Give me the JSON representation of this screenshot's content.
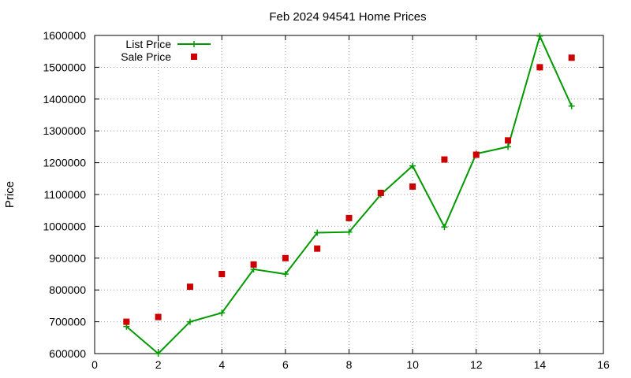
{
  "chart_data": {
    "type": "line",
    "title": "Feb 2024 94541 Home Prices",
    "xlabel": "",
    "ylabel": "Price",
    "xlim": [
      0,
      16
    ],
    "ylim": [
      600000,
      1600000
    ],
    "xticks": [
      0,
      2,
      4,
      6,
      8,
      10,
      12,
      14,
      16
    ],
    "yticks": [
      600000,
      700000,
      800000,
      900000,
      1000000,
      1100000,
      1200000,
      1300000,
      1400000,
      1500000,
      1600000
    ],
    "grid": true,
    "legend_position": "top-left",
    "series": [
      {
        "name": "List Price",
        "style": "line+cross",
        "color": "#009900",
        "x": [
          1,
          2,
          3,
          4,
          5,
          6,
          7,
          8,
          9,
          10,
          11,
          12,
          13,
          14,
          15
        ],
        "y": [
          685000,
          600000,
          700000,
          728000,
          865000,
          850000,
          980000,
          982000,
          1100000,
          1190000,
          998000,
          1228000,
          1250000,
          1598000,
          1378000
        ]
      },
      {
        "name": "Sale Price",
        "style": "square",
        "color": "#cc0000",
        "x": [
          1,
          2,
          3,
          4,
          5,
          6,
          7,
          8,
          9,
          10,
          11,
          12,
          13,
          14,
          15
        ],
        "y": [
          700000,
          715000,
          810000,
          850000,
          880000,
          900000,
          930000,
          1026000,
          1105000,
          1125000,
          1210000,
          1225000,
          1270000,
          1500000,
          1530000
        ]
      }
    ]
  }
}
